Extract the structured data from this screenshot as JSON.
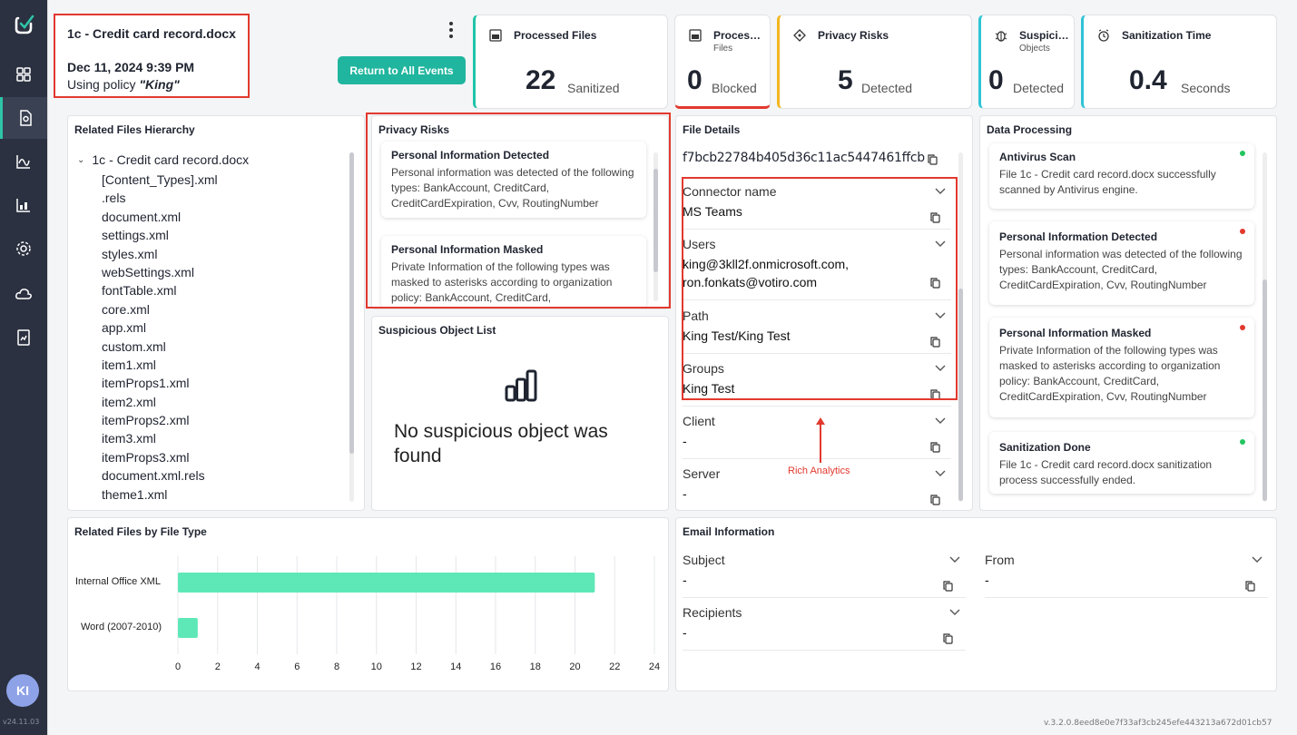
{
  "sidebar": {
    "items": [
      {
        "icon": "dashboard-icon"
      },
      {
        "icon": "file-event-icon",
        "active": true
      },
      {
        "icon": "analytics-chart-icon"
      },
      {
        "icon": "reports-icon"
      },
      {
        "icon": "settings-gear-icon"
      },
      {
        "icon": "cloud-icon"
      },
      {
        "icon": "report-document-icon"
      }
    ],
    "avatar_initials": "KI",
    "version": "v24.11.03"
  },
  "event": {
    "title": "1c - Credit card record.docx",
    "date": "Dec 11, 2024 9:39 PM",
    "policy_prefix": "Using policy ",
    "policy_name": "\"King\"",
    "return_label": "Return to All Events"
  },
  "stats": {
    "processed": {
      "title": "Processed Files",
      "value": "22",
      "unit": "Sanitized"
    },
    "blocked": {
      "title": "Proces…",
      "sub": "Files",
      "value": "0",
      "unit": "Blocked"
    },
    "privacy": {
      "title": "Privacy Risks",
      "value": "5",
      "unit": "Detected"
    },
    "suspicious": {
      "title": "Suspici…",
      "sub": "Objects",
      "value": "0",
      "unit": "Detected"
    },
    "time": {
      "title": "Sanitization Time",
      "value": "0.4",
      "unit": "Seconds"
    }
  },
  "hierarchy": {
    "title": "Related Files Hierarchy",
    "root": "1c - Credit card record.docx",
    "files": [
      "[Content_Types].xml",
      ".rels",
      "document.xml",
      "settings.xml",
      "styles.xml",
      "webSettings.xml",
      "fontTable.xml",
      "core.xml",
      "app.xml",
      "custom.xml",
      "item1.xml",
      "itemProps1.xml",
      "item2.xml",
      "itemProps2.xml",
      "item3.xml",
      "itemProps3.xml",
      "document.xml.rels",
      "theme1.xml"
    ]
  },
  "privacy_risks": {
    "title": "Privacy Risks",
    "cards": [
      {
        "title": "Personal Information Detected",
        "desc": "Personal information was detected of the following types: BankAccount, CreditCard, CreditCardExpiration, Cvv, RoutingNumber"
      },
      {
        "title": "Personal Information Masked",
        "desc": "Private Information of the following types was masked to asterisks according to organization policy: BankAccount, CreditCard,"
      }
    ]
  },
  "suspicious": {
    "title": "Suspicious Object List",
    "empty_text": "No suspicious object was found"
  },
  "file_details": {
    "title": "File Details",
    "hash": "f7bcb22784b405d36c11ac5447461ffcb",
    "fields": [
      {
        "label": "Connector name",
        "value": "MS Teams"
      },
      {
        "label": "Users",
        "value": "king@3kll2f.onmicrosoft.com, ron.fonkats@votiro.com"
      },
      {
        "label": "Path",
        "value": "King Test/King Test"
      },
      {
        "label": "Groups",
        "value": "King Test"
      },
      {
        "label": "Client",
        "value": "-"
      },
      {
        "label": "Server",
        "value": "-"
      }
    ],
    "annotation": "Rich Analytics"
  },
  "data_processing": {
    "title": "Data Processing",
    "cards": [
      {
        "title": "Antivirus Scan",
        "desc": "File 1c - Credit card record.docx successfully scanned by Antivirus engine.",
        "status_color": "#22c55e"
      },
      {
        "title": "Personal Information Detected",
        "desc": "Personal information was detected of the following types: BankAccount, CreditCard, CreditCardExpiration, Cvv, RoutingNumber",
        "status_color": "#e2392e"
      },
      {
        "title": "Personal Information Masked",
        "desc": "Private Information of the following types was masked to asterisks according to organization policy: BankAccount, CreditCard, CreditCardExpiration, Cvv, RoutingNumber",
        "status_color": "#e2392e"
      },
      {
        "title": "Sanitization Done",
        "desc": "File 1c - Credit card record.docx sanitization process successfully ended.",
        "status_color": "#22c55e"
      }
    ]
  },
  "chart_data": {
    "type": "bar",
    "orientation": "horizontal",
    "title": "Related Files by File Type",
    "categories": [
      "Internal Office XML",
      "Word (2007-2010)"
    ],
    "values": [
      21,
      1
    ],
    "xlim": [
      0,
      24
    ],
    "xticks": [
      "0",
      "2",
      "4",
      "6",
      "8",
      "10",
      "12",
      "14",
      "16",
      "18",
      "20",
      "22",
      "24"
    ],
    "grid": true,
    "bar_color": "#5ee8b7"
  },
  "email": {
    "title": "Email Information",
    "fields": [
      {
        "label": "Subject",
        "value": "-"
      },
      {
        "label": "From",
        "value": "-"
      },
      {
        "label": "Recipients",
        "value": "-"
      }
    ]
  },
  "footer_version": "v.3.2.0.8eed8e0e7f33af3cb245efe443213a672d01cb57"
}
